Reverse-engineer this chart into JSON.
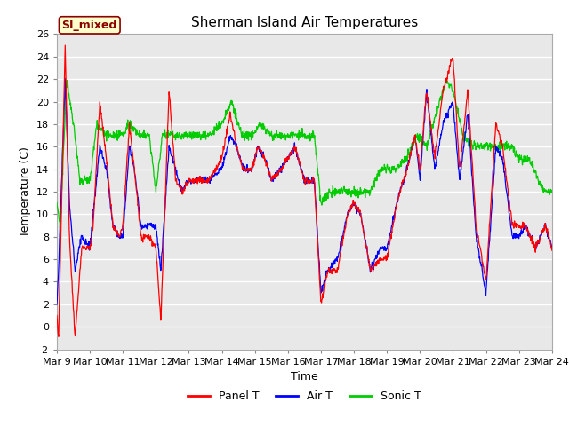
{
  "title": "Sherman Island Air Temperatures",
  "xlabel": "Time",
  "ylabel": "Temperature (C)",
  "ylim": [
    -2,
    26
  ],
  "yticks": [
    -2,
    0,
    2,
    4,
    6,
    8,
    10,
    12,
    14,
    16,
    18,
    20,
    22,
    24,
    26
  ],
  "x_tick_labels": [
    "Mar 9",
    "Mar 10",
    "Mar 11",
    "Mar 12",
    "Mar 13",
    "Mar 14",
    "Mar 15",
    "Mar 16",
    "Mar 17",
    "Mar 18",
    "Mar 19",
    "Mar 20",
    "Mar 21",
    "Mar 22",
    "Mar 23",
    "Mar 24"
  ],
  "n_days": 15,
  "label_text": "SI_mixed",
  "label_bg": "#ffffcc",
  "label_border": "#8B0000",
  "line_colors": {
    "panel": "#ff0000",
    "air": "#0000ff",
    "sonic": "#00cc00"
  },
  "legend_labels": [
    "Panel T",
    "Air T",
    "Sonic T"
  ],
  "bg_color": "#e8e8e8",
  "fig_bg": "#ffffff",
  "grid_color": "#ffffff",
  "title_fontsize": 11,
  "axis_fontsize": 9,
  "tick_fontsize": 8
}
